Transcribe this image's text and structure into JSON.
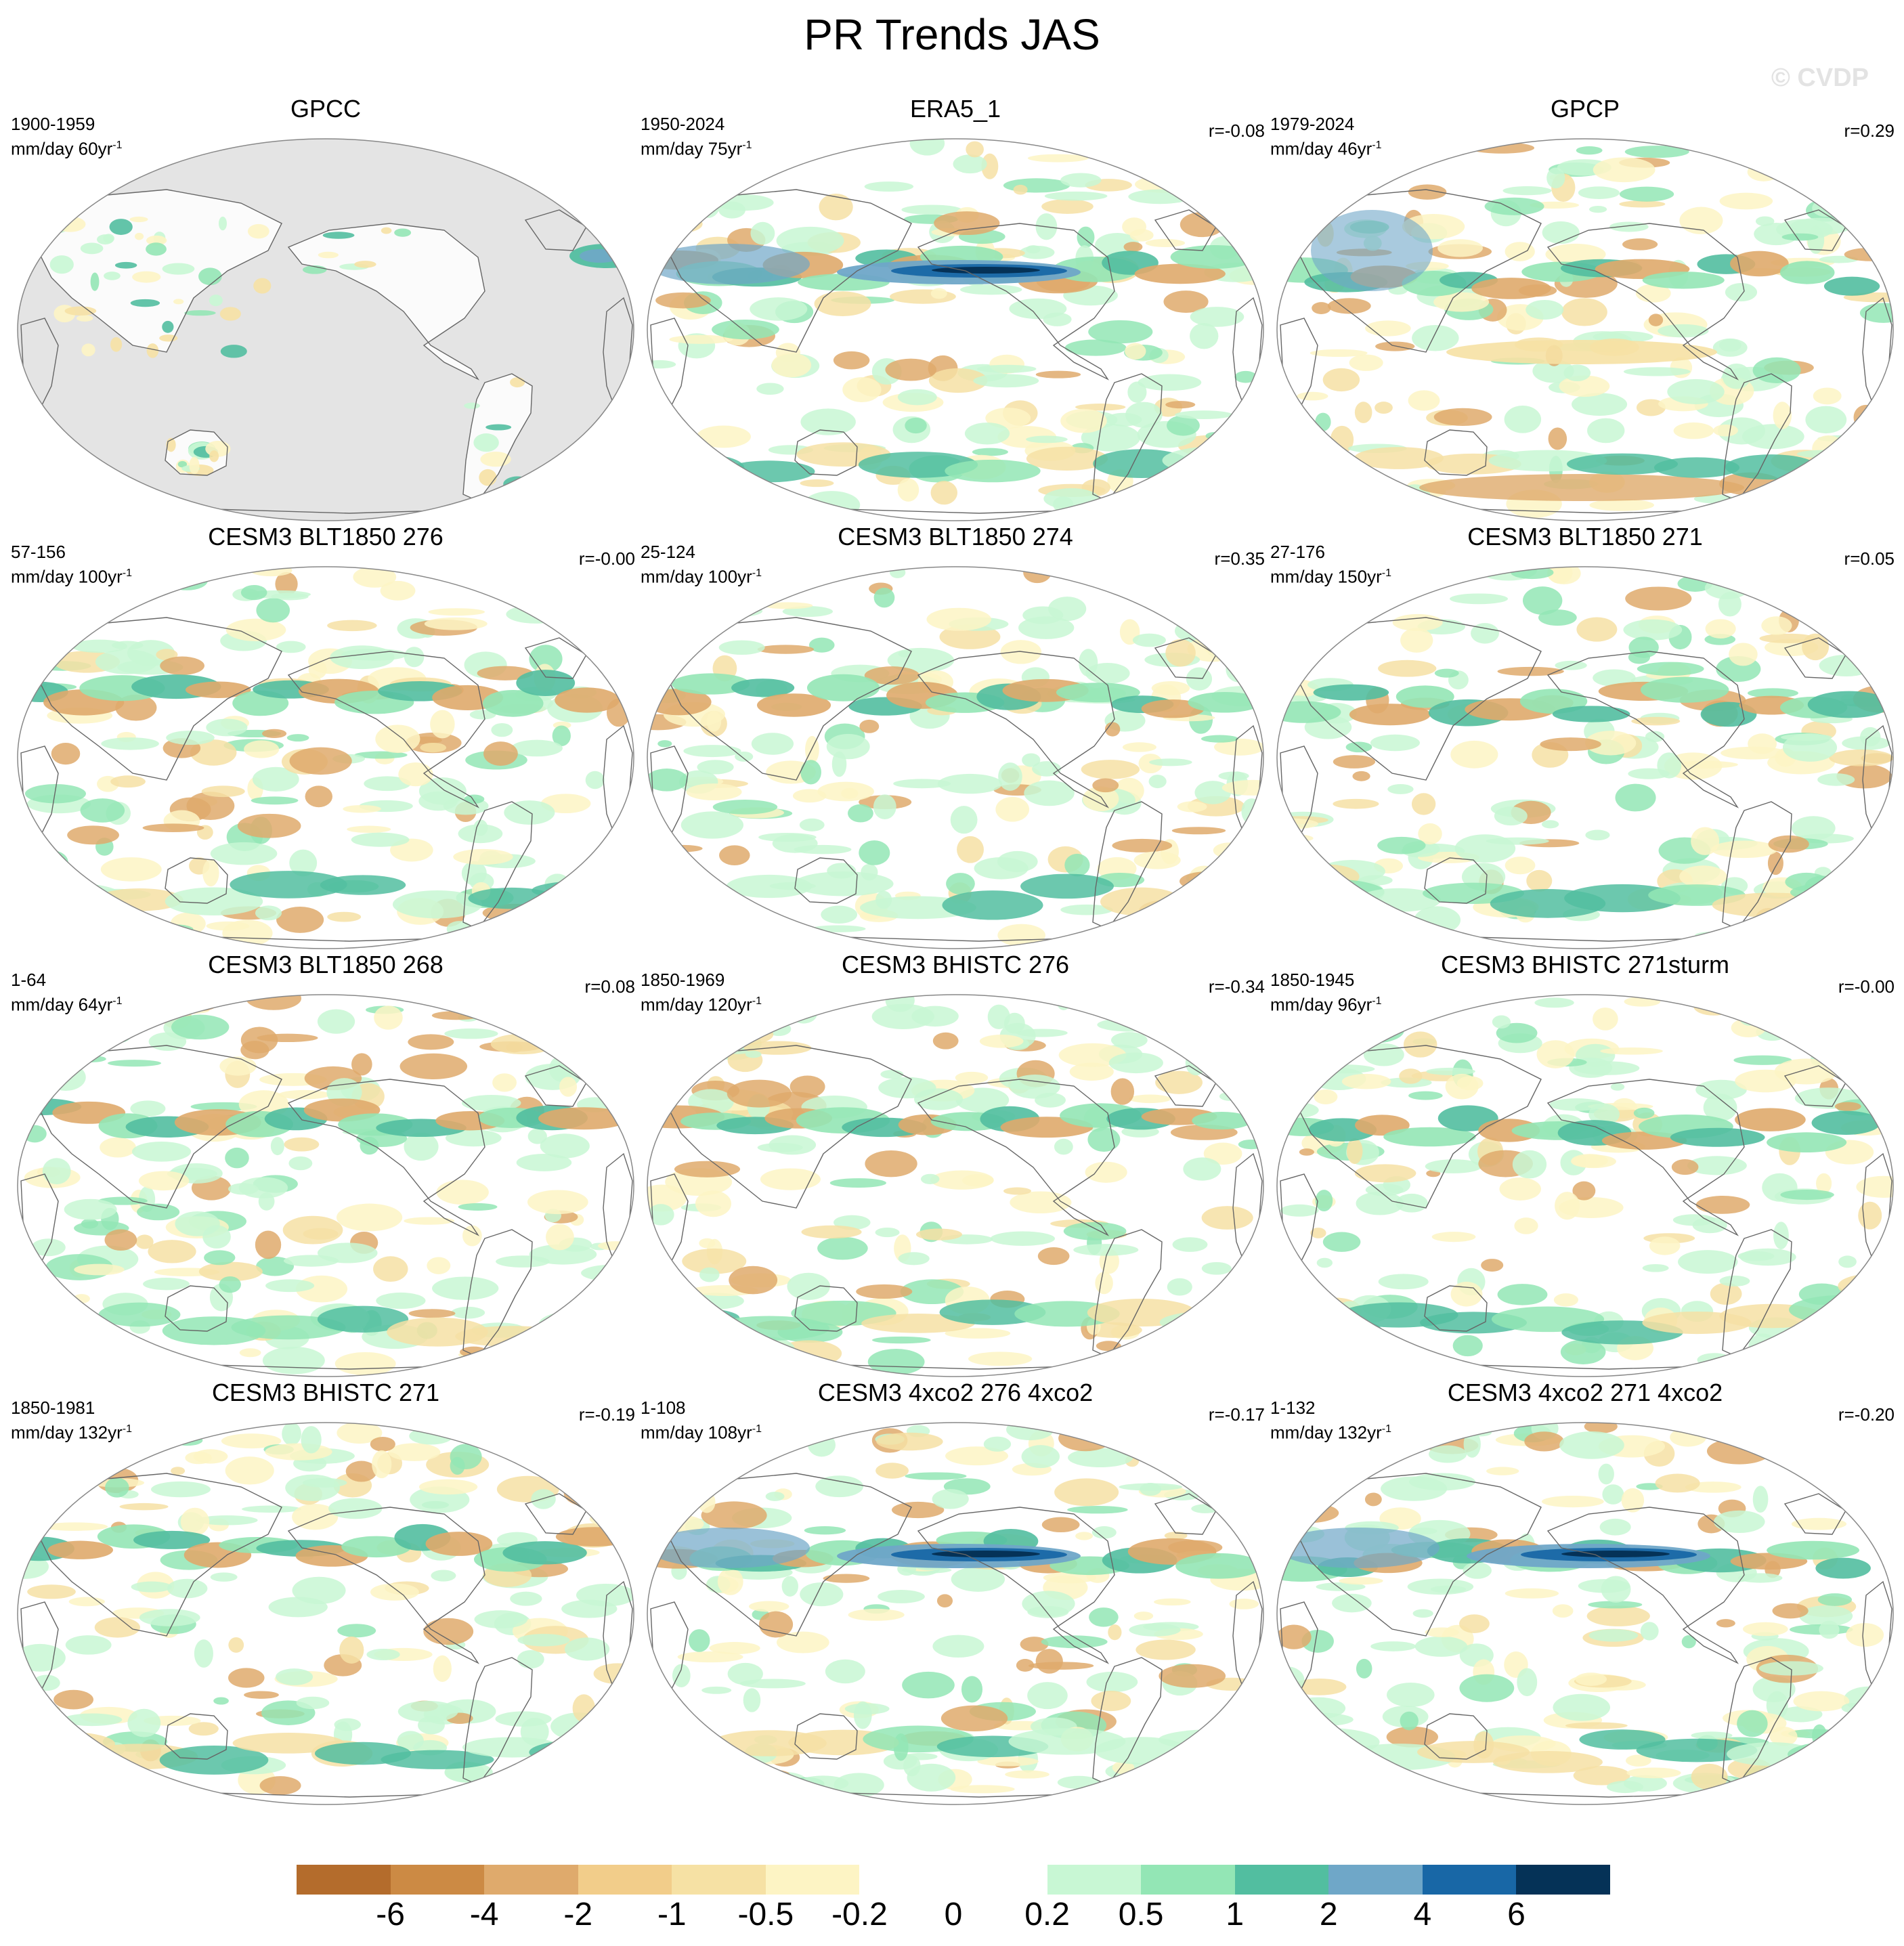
{
  "figure": {
    "title": "PR Trends JAS",
    "watermark": "© CVDP"
  },
  "panels": [
    {
      "title": "GPCC",
      "period": "1900-1959",
      "units": "mm/day 60yr",
      "exponent": "-1",
      "corr": "",
      "land_only": true
    },
    {
      "title": "ERA5_1",
      "period": "1950-2024",
      "units": "mm/day 75yr",
      "exponent": "-1",
      "corr": "r=-0.08",
      "land_only": false
    },
    {
      "title": "GPCP",
      "period": "1979-2024",
      "units": "mm/day 46yr",
      "exponent": "-1",
      "corr": "r=0.29",
      "land_only": false
    },
    {
      "title": "CESM3 BLT1850 276",
      "period": "57-156",
      "units": "mm/day 100yr",
      "exponent": "-1",
      "corr": "r=-0.00",
      "land_only": false
    },
    {
      "title": "CESM3 BLT1850 274",
      "period": "25-124",
      "units": "mm/day 100yr",
      "exponent": "-1",
      "corr": "r=0.35",
      "land_only": false
    },
    {
      "title": "CESM3 BLT1850 271",
      "period": "27-176",
      "units": "mm/day 150yr",
      "exponent": "-1",
      "corr": "r=0.05",
      "land_only": false
    },
    {
      "title": "CESM3 BLT1850 268",
      "period": "1-64",
      "units": "mm/day 64yr",
      "exponent": "-1",
      "corr": "r=0.08",
      "land_only": false
    },
    {
      "title": "CESM3 BHISTC 276",
      "period": "1850-1969",
      "units": "mm/day 120yr",
      "exponent": "-1",
      "corr": "r=-0.34",
      "land_only": false
    },
    {
      "title": "CESM3 BHISTC 271sturm",
      "period": "1850-1945",
      "units": "mm/day 96yr",
      "exponent": "-1",
      "corr": "r=-0.00",
      "land_only": false
    },
    {
      "title": "CESM3 BHISTC 271",
      "period": "1850-1981",
      "units": "mm/day 132yr",
      "exponent": "-1",
      "corr": "r=-0.19",
      "land_only": false
    },
    {
      "title": "CESM3 4xco2 276 4xco2",
      "period": "1-108",
      "units": "mm/day 108yr",
      "exponent": "-1",
      "corr": "r=-0.17",
      "land_only": false
    },
    {
      "title": "CESM3 4xco2 271 4xco2",
      "period": "1-132",
      "units": "mm/day 132yr",
      "exponent": "-1",
      "corr": "r=-0.20",
      "land_only": false
    }
  ],
  "colorbar": {
    "labels": [
      "-6",
      "-4",
      "-2",
      "-1",
      "-0.5",
      "-0.2",
      "0",
      "0.2",
      "0.5",
      "1",
      "2",
      "4",
      "6"
    ],
    "colors": [
      "#b46c2c",
      "#cc8a44",
      "#dfaa6c",
      "#f2cd8a",
      "#f6e1a4",
      "#fdf4c4",
      "#ffffff",
      "#ffffff",
      "#c8f7d4",
      "#93e6b5",
      "#52bea0",
      "#6fa7c8",
      "#1867a6",
      "#053257"
    ]
  },
  "map_features": {
    "land_mask_color": "#e4e4e4",
    "coastline_color": "#666666",
    "projection": "Robinson, centered on Pacific"
  }
}
